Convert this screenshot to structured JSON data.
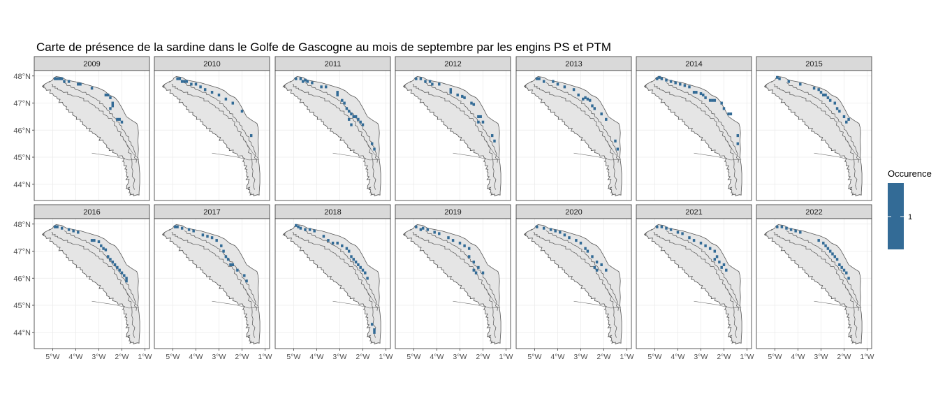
{
  "chart_data": {
    "type": "heatmap",
    "title": "Carte de présence de la sardine dans le Golfe de Gascogne au mois de septembre par les engins PS et PTM",
    "xlabel": "",
    "ylabel": "",
    "facets": [
      "2009",
      "2010",
      "2011",
      "2012",
      "2013",
      "2014",
      "2015",
      "2016",
      "2017",
      "2018",
      "2019",
      "2020",
      "2021",
      "2022"
    ],
    "facet_layout": {
      "rows": 2,
      "cols": 7
    },
    "x_ticks": [
      "5°W",
      "4°W",
      "3°W",
      "2°W",
      "1°W"
    ],
    "x_tick_values": [
      -5,
      -4,
      -3,
      -2,
      -1
    ],
    "y_ticks": [
      "44°N",
      "45°N",
      "46°N",
      "47°N",
      "48°N"
    ],
    "y_tick_values": [
      44,
      45,
      46,
      47,
      48
    ],
    "xlim": [
      -5.8,
      -0.8
    ],
    "ylim": [
      43.4,
      48.2
    ],
    "grid": true,
    "legend": {
      "title": "Occurence",
      "labels": [
        "1"
      ],
      "values": [
        1
      ],
      "position": "right"
    },
    "value_color": "#336b96",
    "land_fill": "#e5e5e5",
    "strip_fill": "#d9d9d9",
    "presence_value": 1,
    "presence": {
      "2009": [
        [
          -4.9,
          47.9
        ],
        [
          -4.8,
          47.9
        ],
        [
          -4.7,
          47.9
        ],
        [
          -4.6,
          47.9
        ],
        [
          -4.5,
          47.8
        ],
        [
          -4.3,
          47.8
        ],
        [
          -3.9,
          47.7
        ],
        [
          -3.8,
          47.7
        ],
        [
          -3.3,
          47.55
        ],
        [
          -2.7,
          47.3
        ],
        [
          -2.6,
          47.3
        ],
        [
          -2.5,
          47.2
        ],
        [
          -2.4,
          47.0
        ],
        [
          -2.4,
          46.9
        ],
        [
          -2.5,
          46.8
        ],
        [
          -2.2,
          46.4
        ],
        [
          -2.1,
          46.4
        ],
        [
          -2.0,
          46.3
        ]
      ],
      "2010": [
        [
          -4.8,
          47.9
        ],
        [
          -4.7,
          47.9
        ],
        [
          -4.6,
          47.8
        ],
        [
          -4.5,
          47.8
        ],
        [
          -4.4,
          47.8
        ],
        [
          -4.2,
          47.7
        ],
        [
          -4.0,
          47.7
        ],
        [
          -3.8,
          47.6
        ],
        [
          -3.6,
          47.5
        ],
        [
          -3.3,
          47.4
        ],
        [
          -3.0,
          47.3
        ],
        [
          -2.7,
          47.15
        ],
        [
          -2.4,
          47.0
        ],
        [
          -2.0,
          46.7
        ],
        [
          -1.6,
          45.8
        ]
      ],
      "2011": [
        [
          -4.9,
          47.9
        ],
        [
          -4.7,
          47.9
        ],
        [
          -4.6,
          47.8
        ],
        [
          -4.5,
          47.85
        ],
        [
          -4.4,
          47.8
        ],
        [
          -4.2,
          47.75
        ],
        [
          -3.8,
          47.6
        ],
        [
          -3.6,
          47.6
        ],
        [
          -3.1,
          47.4
        ],
        [
          -3.1,
          47.3
        ],
        [
          -2.9,
          47.1
        ],
        [
          -2.8,
          47.0
        ],
        [
          -2.7,
          46.8
        ],
        [
          -2.6,
          46.7
        ],
        [
          -2.5,
          46.6
        ],
        [
          -2.4,
          46.5
        ],
        [
          -2.3,
          46.5
        ],
        [
          -2.2,
          46.4
        ],
        [
          -2.1,
          46.3
        ],
        [
          -2.6,
          46.4
        ],
        [
          -2.5,
          46.2
        ],
        [
          -2.0,
          46.2
        ],
        [
          -1.6,
          45.5
        ],
        [
          -1.5,
          45.3
        ]
      ],
      "2012": [
        [
          -4.9,
          47.9
        ],
        [
          -4.7,
          47.9
        ],
        [
          -4.5,
          47.8
        ],
        [
          -4.3,
          47.8
        ],
        [
          -4.2,
          47.7
        ],
        [
          -3.9,
          47.7
        ],
        [
          -3.4,
          47.5
        ],
        [
          -3.4,
          47.4
        ],
        [
          -3.1,
          47.3
        ],
        [
          -2.9,
          47.25
        ],
        [
          -2.8,
          47.2
        ],
        [
          -2.5,
          47.0
        ],
        [
          -2.4,
          46.95
        ],
        [
          -2.2,
          46.5
        ],
        [
          -2.1,
          46.5
        ],
        [
          -2.0,
          46.3
        ],
        [
          -2.2,
          46.3
        ],
        [
          -1.6,
          45.8
        ],
        [
          -1.5,
          45.6
        ]
      ],
      "2013": [
        [
          -4.9,
          47.9
        ],
        [
          -4.8,
          47.9
        ],
        [
          -4.6,
          47.8
        ],
        [
          -4.2,
          47.8
        ],
        [
          -4.0,
          47.7
        ],
        [
          -3.7,
          47.6
        ],
        [
          -3.3,
          47.5
        ],
        [
          -3.1,
          47.3
        ],
        [
          -2.9,
          47.15
        ],
        [
          -2.8,
          47.2
        ],
        [
          -2.7,
          47.15
        ],
        [
          -2.6,
          47.1
        ],
        [
          -2.5,
          46.9
        ],
        [
          -2.4,
          46.8
        ],
        [
          -2.1,
          46.6
        ],
        [
          -1.9,
          46.4
        ],
        [
          -1.5,
          45.6
        ],
        [
          -1.4,
          45.3
        ]
      ],
      "2014": [
        [
          -4.9,
          47.9
        ],
        [
          -4.8,
          47.95
        ],
        [
          -4.7,
          47.9
        ],
        [
          -4.5,
          47.85
        ],
        [
          -4.3,
          47.8
        ],
        [
          -4.1,
          47.75
        ],
        [
          -3.9,
          47.7
        ],
        [
          -3.7,
          47.65
        ],
        [
          -3.5,
          47.6
        ],
        [
          -3.3,
          47.4
        ],
        [
          -3.2,
          47.4
        ],
        [
          -3.0,
          47.35
        ],
        [
          -2.9,
          47.3
        ],
        [
          -2.8,
          47.2
        ],
        [
          -2.6,
          47.1
        ],
        [
          -2.5,
          47.1
        ],
        [
          -2.4,
          47.1
        ],
        [
          -2.1,
          47.0
        ],
        [
          -2.0,
          46.8
        ],
        [
          -1.8,
          46.6
        ],
        [
          -1.7,
          46.6
        ],
        [
          -1.4,
          45.8
        ],
        [
          -1.4,
          45.5
        ]
      ],
      "2015": [
        [
          -4.9,
          47.95
        ],
        [
          -4.8,
          47.9
        ],
        [
          -4.4,
          47.8
        ],
        [
          -3.9,
          47.7
        ],
        [
          -3.3,
          47.55
        ],
        [
          -3.1,
          47.5
        ],
        [
          -3.0,
          47.4
        ],
        [
          -2.9,
          47.3
        ],
        [
          -2.8,
          47.3
        ],
        [
          -2.7,
          47.2
        ],
        [
          -2.6,
          47.1
        ],
        [
          -2.4,
          47.0
        ],
        [
          -2.3,
          46.8
        ],
        [
          -2.2,
          46.7
        ],
        [
          -2.0,
          46.5
        ],
        [
          -1.8,
          46.4
        ],
        [
          -1.9,
          46.3
        ]
      ],
      "2016": [
        [
          -4.9,
          47.9
        ],
        [
          -4.8,
          47.9
        ],
        [
          -4.6,
          47.85
        ],
        [
          -4.3,
          47.8
        ],
        [
          -4.1,
          47.75
        ],
        [
          -3.9,
          47.7
        ],
        [
          -3.3,
          47.4
        ],
        [
          -3.2,
          47.4
        ],
        [
          -3.0,
          47.35
        ],
        [
          -2.9,
          47.2
        ],
        [
          -2.8,
          47.1
        ],
        [
          -2.7,
          47.05
        ],
        [
          -2.6,
          46.8
        ],
        [
          -2.5,
          46.7
        ],
        [
          -2.4,
          46.6
        ],
        [
          -2.3,
          46.5
        ],
        [
          -2.2,
          46.4
        ],
        [
          -2.1,
          46.3
        ],
        [
          -2.0,
          46.2
        ],
        [
          -1.9,
          46.1
        ],
        [
          -1.8,
          46.0
        ],
        [
          -1.8,
          45.9
        ]
      ],
      "2017": [
        [
          -4.9,
          47.9
        ],
        [
          -4.8,
          47.9
        ],
        [
          -4.6,
          47.85
        ],
        [
          -4.3,
          47.8
        ],
        [
          -4.1,
          47.75
        ],
        [
          -3.7,
          47.6
        ],
        [
          -3.5,
          47.55
        ],
        [
          -3.3,
          47.5
        ],
        [
          -3.1,
          47.4
        ],
        [
          -2.9,
          47.2
        ],
        [
          -2.8,
          47.0
        ],
        [
          -2.7,
          46.8
        ],
        [
          -2.6,
          46.7
        ],
        [
          -2.5,
          46.5
        ],
        [
          -2.4,
          46.5
        ],
        [
          -2.2,
          46.3
        ],
        [
          -1.9,
          46.1
        ],
        [
          -1.8,
          45.9
        ]
      ],
      "2018": [
        [
          -4.9,
          47.95
        ],
        [
          -4.8,
          47.9
        ],
        [
          -4.7,
          47.85
        ],
        [
          -4.5,
          47.8
        ],
        [
          -4.3,
          47.8
        ],
        [
          -4.1,
          47.75
        ],
        [
          -3.7,
          47.55
        ],
        [
          -3.5,
          47.4
        ],
        [
          -3.3,
          47.3
        ],
        [
          -3.1,
          47.3
        ],
        [
          -2.9,
          47.2
        ],
        [
          -2.7,
          47.1
        ],
        [
          -2.6,
          47.0
        ],
        [
          -2.5,
          46.8
        ],
        [
          -2.4,
          46.7
        ],
        [
          -2.3,
          46.6
        ],
        [
          -2.2,
          46.5
        ],
        [
          -2.1,
          46.4
        ],
        [
          -2.0,
          46.3
        ],
        [
          -1.9,
          46.2
        ],
        [
          -1.8,
          46.0
        ],
        [
          -1.6,
          44.3
        ],
        [
          -1.5,
          44.1
        ],
        [
          -1.5,
          44.0
        ]
      ],
      "2019": [
        [
          -4.9,
          47.9
        ],
        [
          -4.7,
          47.8
        ],
        [
          -4.6,
          47.85
        ],
        [
          -4.4,
          47.8
        ],
        [
          -4.1,
          47.7
        ],
        [
          -3.9,
          47.65
        ],
        [
          -3.5,
          47.5
        ],
        [
          -3.3,
          47.4
        ],
        [
          -3.0,
          47.3
        ],
        [
          -2.8,
          47.2
        ],
        [
          -2.6,
          47.1
        ],
        [
          -2.6,
          46.8
        ],
        [
          -2.4,
          46.6
        ],
        [
          -2.2,
          46.4
        ],
        [
          -2.0,
          46.2
        ],
        [
          -2.4,
          46.3
        ],
        [
          -2.3,
          46.2
        ]
      ],
      "2020": [
        [
          -4.9,
          47.9
        ],
        [
          -4.6,
          47.85
        ],
        [
          -4.3,
          47.8
        ],
        [
          -4.1,
          47.75
        ],
        [
          -3.9,
          47.7
        ],
        [
          -3.7,
          47.6
        ],
        [
          -3.5,
          47.5
        ],
        [
          -3.2,
          47.4
        ],
        [
          -3.0,
          47.3
        ],
        [
          -2.8,
          47.1
        ],
        [
          -2.7,
          47.0
        ],
        [
          -2.5,
          46.8
        ],
        [
          -2.3,
          46.6
        ],
        [
          -2.1,
          46.5
        ],
        [
          -1.9,
          46.3
        ],
        [
          -2.4,
          46.4
        ],
        [
          -2.3,
          46.3
        ]
      ],
      "2021": [
        [
          -4.9,
          47.9
        ],
        [
          -4.7,
          47.9
        ],
        [
          -4.5,
          47.85
        ],
        [
          -4.3,
          47.8
        ],
        [
          -4.0,
          47.7
        ],
        [
          -3.8,
          47.65
        ],
        [
          -3.5,
          47.5
        ],
        [
          -3.3,
          47.4
        ],
        [
          -3.0,
          47.3
        ],
        [
          -2.8,
          47.2
        ],
        [
          -2.6,
          47.1
        ],
        [
          -2.4,
          47.0
        ],
        [
          -2.3,
          46.8
        ],
        [
          -2.2,
          46.6
        ],
        [
          -2.0,
          46.5
        ],
        [
          -1.9,
          46.3
        ],
        [
          -2.4,
          46.7
        ],
        [
          -2.1,
          46.4
        ]
      ],
      "2022": [
        [
          -4.9,
          47.9
        ],
        [
          -4.7,
          47.9
        ],
        [
          -4.5,
          47.85
        ],
        [
          -4.3,
          47.8
        ],
        [
          -4.1,
          47.75
        ],
        [
          -3.9,
          47.7
        ],
        [
          -3.1,
          47.4
        ],
        [
          -2.9,
          47.3
        ],
        [
          -2.8,
          47.2
        ],
        [
          -2.7,
          47.1
        ],
        [
          -2.6,
          47.0
        ],
        [
          -2.5,
          46.9
        ],
        [
          -2.4,
          46.8
        ],
        [
          -2.3,
          46.7
        ],
        [
          -2.2,
          46.5
        ],
        [
          -2.1,
          46.4
        ],
        [
          -2.0,
          46.3
        ],
        [
          -1.9,
          46.2
        ],
        [
          -1.8,
          46.0
        ]
      ]
    }
  }
}
